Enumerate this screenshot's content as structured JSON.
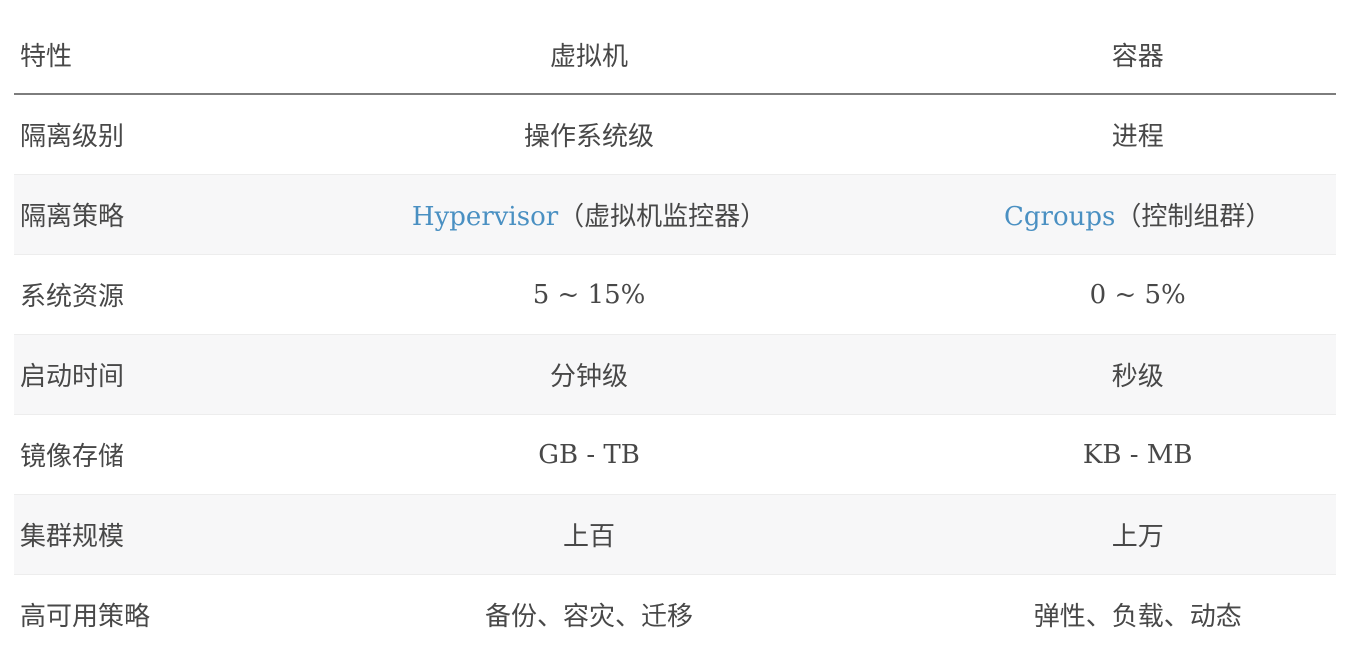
{
  "table": {
    "headers": [
      "特性",
      "虚拟机",
      "容器"
    ],
    "rows": [
      {
        "feature": "隔离级别",
        "vm": "操作系统级",
        "container": "进程"
      },
      {
        "feature": "隔离策略",
        "vm_link": "Hypervisor",
        "vm_suffix": "（虚拟机监控器）",
        "container_link": "Cgroups",
        "container_suffix": "（控制组群）"
      },
      {
        "feature": "系统资源",
        "vm": "5 ~ 15%",
        "container": "0 ~ 5%"
      },
      {
        "feature": "启动时间",
        "vm": "分钟级",
        "container": "秒级"
      },
      {
        "feature": "镜像存储",
        "vm": "GB - TB",
        "container": "KB - MB"
      },
      {
        "feature": "集群规模",
        "vm": "上百",
        "container": "上万"
      },
      {
        "feature": "高可用策略",
        "vm": "备份、容灾、迁移",
        "container": "弹性、负载、动态"
      }
    ],
    "colors": {
      "link": "#4a90c2",
      "text": "#484848",
      "header_rule": "#7d7d7d",
      "stripe": "#f7f7f8",
      "row_divider": "#ededed"
    }
  }
}
